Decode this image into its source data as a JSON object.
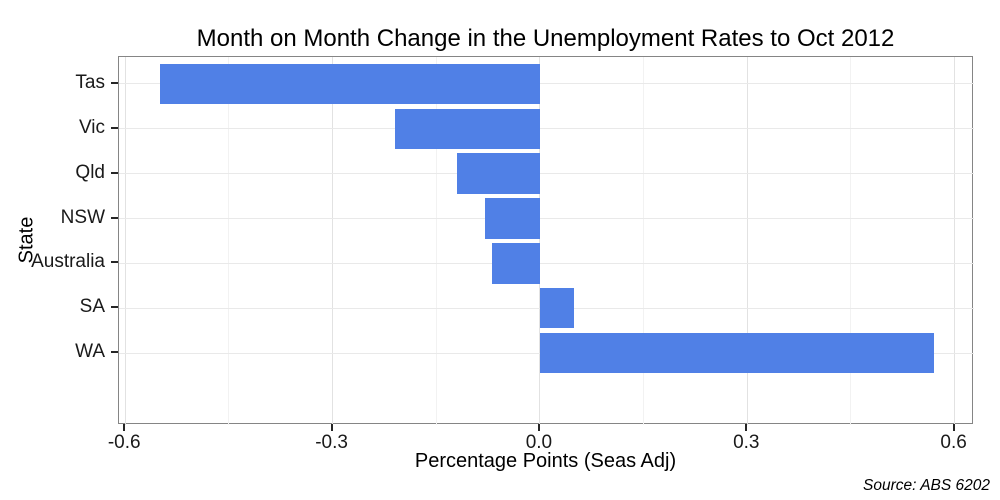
{
  "source_note": "Source: ABS 6202",
  "chart_data": {
    "type": "bar",
    "orientation": "horizontal",
    "title": "Month on Month Change in the Unemployment Rates to Oct 2012",
    "xlabel": "Percentage Points (Seas Adj)",
    "ylabel": "State",
    "categories": [
      "Tas",
      "Vic",
      "Qld",
      "NSW",
      "Australia",
      "SA",
      "WA"
    ],
    "values": [
      -0.55,
      -0.21,
      -0.12,
      -0.08,
      -0.07,
      0.05,
      0.57
    ],
    "xlim": [
      -0.609,
      0.628
    ],
    "x_ticks": [
      -0.6,
      -0.3,
      0.0,
      0.3,
      0.6
    ],
    "x_tick_labels": [
      "-0.6",
      "-0.3",
      "0.0",
      "0.3",
      "0.6"
    ],
    "x_minor_ticks": [
      -0.45,
      -0.15,
      0.15,
      0.45
    ],
    "grid": true,
    "legend": false,
    "bar_color": "#5080e6",
    "bar_width_fraction": 0.9,
    "category_band_padding": 0.6
  }
}
